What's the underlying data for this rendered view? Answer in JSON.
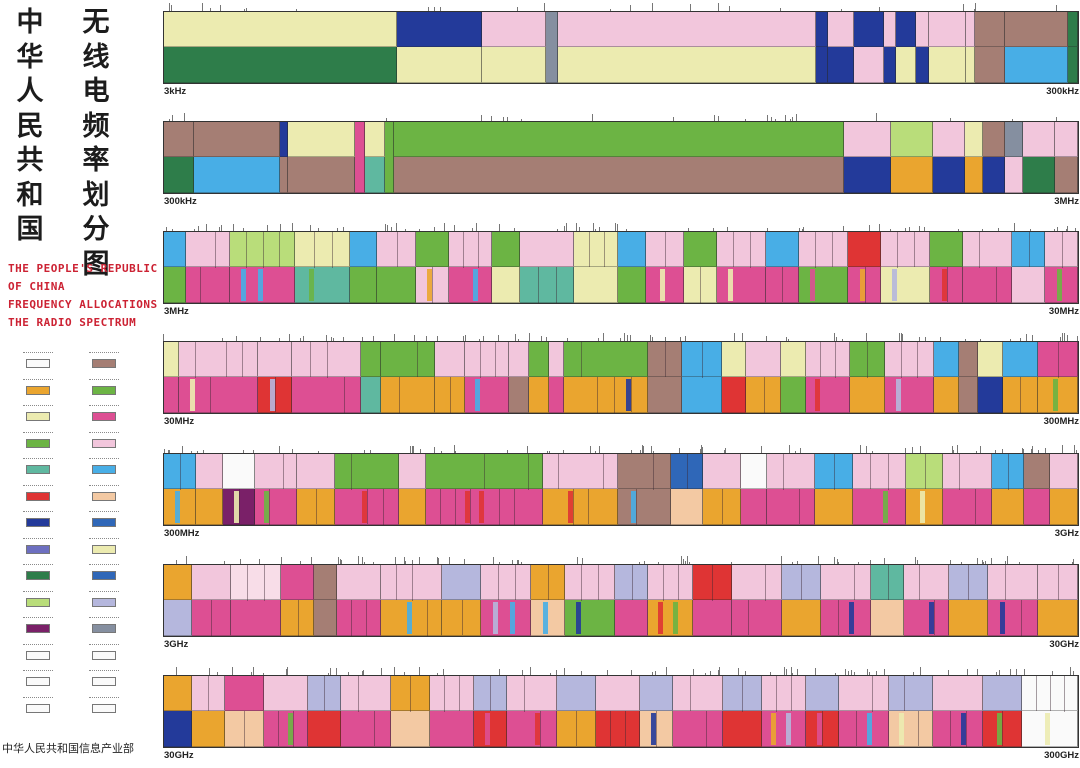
{
  "title": {
    "chinese_left": "中华人民共和国",
    "chinese_right": "无线电频率划分图",
    "english": [
      "THE PEOPLE'S REPUBLIC",
      "OF CHINA",
      "FREQUENCY ALLOCATIONS",
      "THE RADIO SPECTRUM"
    ]
  },
  "footer": "中华人民共和国信息产业部",
  "colors": {
    "pink": "#f2c6dc",
    "yellow": "#ecebb0",
    "green": "#2e7d4a",
    "lgreen": "#6cb444",
    "navy": "#233a9a",
    "brown": "#a57e74",
    "sky": "#48aee6",
    "magenta": "#dd4f93",
    "orange": "#eaa52f",
    "gray": "#858fa0",
    "red": "#df3434",
    "purple": "#7a2068",
    "teal": "#5fb8a0",
    "lpink": "#f8dde8",
    "peach": "#f3c9a3",
    "lilac": "#b5b7dd",
    "dblue": "#2f67b8",
    "white": "#fafafa",
    "lime": "#b9dd7a",
    "violet": "#6d6fc0"
  },
  "legend": {
    "left": [
      {
        "color": "white",
        "icon": "service-swatch"
      },
      {
        "color": "orange",
        "icon": "service-swatch"
      },
      {
        "color": "yellow",
        "icon": "service-swatch"
      },
      {
        "color": "lgreen",
        "icon": "service-swatch"
      },
      {
        "color": "teal",
        "icon": "service-swatch"
      },
      {
        "color": "red",
        "icon": "service-swatch"
      },
      {
        "color": "navy",
        "icon": "service-swatch"
      },
      {
        "color": "violet",
        "icon": "service-swatch"
      },
      {
        "color": "green",
        "icon": "service-swatch"
      },
      {
        "color": "lime",
        "icon": "service-swatch"
      },
      {
        "color": "purple",
        "icon": "service-swatch"
      },
      {
        "color": "white",
        "icon": "service-swatch"
      },
      {
        "color": "white",
        "icon": "service-swatch"
      },
      {
        "color": "white",
        "icon": "service-swatch"
      }
    ],
    "right": [
      {
        "color": "brown",
        "icon": "service-swatch"
      },
      {
        "color": "lgreen",
        "icon": "service-swatch"
      },
      {
        "color": "magenta",
        "icon": "service-swatch"
      },
      {
        "color": "pink",
        "icon": "service-swatch"
      },
      {
        "color": "sky",
        "icon": "service-swatch"
      },
      {
        "color": "peach",
        "icon": "service-swatch"
      },
      {
        "color": "dblue",
        "icon": "service-swatch"
      },
      {
        "color": "yellow",
        "icon": "service-swatch"
      },
      {
        "color": "dblue",
        "icon": "service-swatch"
      },
      {
        "color": "lilac",
        "icon": "service-swatch"
      },
      {
        "color": "gray",
        "icon": "service-swatch"
      },
      {
        "color": "white",
        "icon": "service-swatch"
      },
      {
        "color": "white",
        "icon": "service-swatch"
      },
      {
        "color": "white",
        "icon": "service-swatch"
      }
    ]
  },
  "chart_data": {
    "type": "frequency-allocation-bands",
    "bands": [
      {
        "start_label": "3kHz",
        "end_label": "300kHz",
        "segments": [
          {
            "w": 230,
            "top": "yellow",
            "bottom": "green"
          },
          {
            "w": 85,
            "top": "navy",
            "bottom": "yellow"
          },
          {
            "w": 63,
            "top": "pink",
            "bottom": "yellow"
          },
          {
            "w": 12,
            "top": "gray"
          },
          {
            "w": 255,
            "top": "pink",
            "bottom": "yellow"
          },
          {
            "w": 12,
            "top": "navy",
            "bottom": "navy"
          },
          {
            "w": 25,
            "top": "pink",
            "bottom": "navy"
          },
          {
            "w": 30,
            "top": "navy",
            "bottom": "pink"
          },
          {
            "w": 12,
            "top": "pink",
            "bottom": "navy"
          },
          {
            "w": 20,
            "top": "navy",
            "bottom": "yellow"
          },
          {
            "w": 13,
            "top": "pink",
            "bottom": "navy"
          },
          {
            "w": 36,
            "top": "pink",
            "bottom": "yellow"
          },
          {
            "w": 9,
            "top": "pink",
            "bottom": "yellow"
          },
          {
            "w": 30,
            "top": "brown",
            "bottom": "brown"
          },
          {
            "w": 62,
            "top": "brown",
            "bottom": "sky"
          },
          {
            "w": 10,
            "top": "green",
            "bottom": "green"
          }
        ]
      },
      {
        "start_label": "300kHz",
        "end_label": "3MHz",
        "segments": [
          {
            "w": 30,
            "top": "brown",
            "bottom": "green"
          },
          {
            "w": 86,
            "top": "brown",
            "bottom": "sky"
          },
          {
            "w": 8,
            "top": "navy",
            "bottom": "brown"
          },
          {
            "w": 67,
            "top": "yellow",
            "bottom": "brown"
          },
          {
            "w": 10,
            "top": "magenta"
          },
          {
            "w": 20,
            "top": "yellow",
            "bottom": "teal"
          },
          {
            "w": 10,
            "top": "lgreen"
          },
          {
            "w": 450,
            "top": "lgreen",
            "bottom": "brown"
          },
          {
            "w": 48,
            "top": "pink",
            "bottom": "navy"
          },
          {
            "w": 42,
            "top": "lime",
            "bottom": "orange"
          },
          {
            "w": 32,
            "top": "pink",
            "bottom": "navy"
          },
          {
            "w": 18,
            "top": "yellow",
            "bottom": "orange"
          },
          {
            "w": 22,
            "top": "brown",
            "bottom": "navy"
          },
          {
            "w": 18,
            "top": "gray",
            "bottom": "pink"
          },
          {
            "w": 32,
            "top": "pink",
            "bottom": "green"
          },
          {
            "w": 23,
            "top": "pink",
            "bottom": "brown"
          }
        ]
      },
      {
        "start_label": "3MHz",
        "end_label": "30MHz",
        "segments": [
          {
            "w": 20,
            "top": "sky",
            "bottom": "lgreen"
          },
          {
            "w": 40,
            "top": "pink",
            "bottom": "magenta"
          },
          {
            "w": 60,
            "top": "lime",
            "bottom": "magenta"
          },
          {
            "w": 50,
            "top": "yellow",
            "bottom": "teal"
          },
          {
            "w": 25,
            "top": "sky",
            "bottom": "lgreen"
          },
          {
            "w": 35,
            "top": "pink",
            "bottom": "lgreen"
          },
          {
            "w": 30,
            "top": "lgreen",
            "bottom": "pink"
          },
          {
            "w": 40,
            "top": "pink",
            "bottom": "magenta"
          },
          {
            "w": 25,
            "top": "lgreen",
            "bottom": "yellow"
          },
          {
            "w": 50,
            "top": "pink",
            "bottom": "teal"
          },
          {
            "w": 40,
            "top": "yellow",
            "bottom": "yellow"
          },
          {
            "w": 25,
            "top": "sky",
            "bottom": "lgreen"
          },
          {
            "w": 35,
            "top": "pink",
            "bottom": "magenta"
          },
          {
            "w": 30,
            "top": "lgreen",
            "bottom": "yellow"
          },
          {
            "w": 45,
            "top": "pink",
            "bottom": "magenta"
          },
          {
            "w": 30,
            "top": "sky",
            "bottom": "magenta"
          },
          {
            "w": 45,
            "top": "pink",
            "bottom": "lgreen"
          },
          {
            "w": 30,
            "top": "red",
            "bottom": "magenta"
          },
          {
            "w": 45,
            "top": "pink",
            "bottom": "yellow"
          },
          {
            "w": 30,
            "top": "lgreen",
            "bottom": "magenta"
          },
          {
            "w": 45,
            "top": "pink",
            "bottom": "magenta"
          },
          {
            "w": 30,
            "top": "sky",
            "bottom": "pink"
          },
          {
            "w": 30,
            "top": "pink",
            "bottom": "magenta"
          }
        ]
      },
      {
        "start_label": "30MHz",
        "end_label": "300MHz",
        "segments": [
          {
            "w": 15,
            "top": "yellow",
            "bottom": "magenta"
          },
          {
            "w": 80,
            "top": "pink",
            "bottom": "magenta"
          },
          {
            "w": 35,
            "top": "pink",
            "bottom": "red"
          },
          {
            "w": 70,
            "top": "pink",
            "bottom": "magenta"
          },
          {
            "w": 20,
            "top": "lgreen",
            "bottom": "teal"
          },
          {
            "w": 55,
            "top": "lgreen",
            "bottom": "orange"
          },
          {
            "w": 30,
            "top": "pink",
            "bottom": "orange"
          },
          {
            "w": 45,
            "top": "pink",
            "bottom": "magenta"
          },
          {
            "w": 20,
            "top": "pink",
            "bottom": "brown"
          },
          {
            "w": 20,
            "top": "lgreen",
            "bottom": "orange"
          },
          {
            "w": 15,
            "top": "pink",
            "bottom": "magenta"
          },
          {
            "w": 85,
            "top": "lgreen",
            "bottom": "orange"
          },
          {
            "w": 35,
            "top": "brown",
            "bottom": "brown"
          },
          {
            "w": 40,
            "top": "sky",
            "bottom": "sky"
          },
          {
            "w": 25,
            "top": "yellow",
            "bottom": "red"
          },
          {
            "w": 35,
            "top": "pink",
            "bottom": "orange"
          },
          {
            "w": 25,
            "top": "yellow",
            "bottom": "lgreen"
          },
          {
            "w": 45,
            "top": "pink",
            "bottom": "magenta"
          },
          {
            "w": 35,
            "top": "lgreen",
            "bottom": "orange"
          },
          {
            "w": 50,
            "top": "pink",
            "bottom": "magenta"
          },
          {
            "w": 25,
            "top": "sky",
            "bottom": "orange"
          },
          {
            "w": 20,
            "top": "brown",
            "bottom": "brown"
          },
          {
            "w": 25,
            "top": "yellow",
            "bottom": "navy"
          },
          {
            "w": 35,
            "top": "sky",
            "bottom": "orange"
          },
          {
            "w": 41,
            "top": "magenta",
            "bottom": "orange"
          }
        ]
      },
      {
        "start_label": "300MHz",
        "end_label": "3GHz",
        "segments": [
          {
            "w": 30,
            "top": "sky",
            "bottom": "orange"
          },
          {
            "w": 25,
            "top": "pink",
            "bottom": "orange"
          },
          {
            "w": 30,
            "top": "white",
            "bottom": "purple"
          },
          {
            "w": 40,
            "top": "pink",
            "bottom": "magenta"
          },
          {
            "w": 35,
            "top": "pink",
            "bottom": "orange"
          },
          {
            "w": 60,
            "top": "lgreen",
            "bottom": "magenta"
          },
          {
            "w": 25,
            "top": "pink",
            "bottom": "orange"
          },
          {
            "w": 110,
            "top": "lgreen",
            "bottom": "magenta"
          },
          {
            "w": 70,
            "top": "pink",
            "bottom": "orange"
          },
          {
            "w": 50,
            "top": "brown",
            "bottom": "brown"
          },
          {
            "w": 30,
            "top": "dblue",
            "bottom": "peach"
          },
          {
            "w": 35,
            "top": "pink",
            "bottom": "orange"
          },
          {
            "w": 25,
            "top": "white",
            "bottom": "magenta"
          },
          {
            "w": 45,
            "top": "pink",
            "bottom": "magenta"
          },
          {
            "w": 35,
            "top": "sky",
            "bottom": "orange"
          },
          {
            "w": 50,
            "top": "pink",
            "bottom": "magenta"
          },
          {
            "w": 35,
            "top": "lime",
            "bottom": "orange"
          },
          {
            "w": 45,
            "top": "pink",
            "bottom": "magenta"
          },
          {
            "w": 30,
            "top": "sky",
            "bottom": "orange"
          },
          {
            "w": 25,
            "top": "brown",
            "bottom": "magenta"
          },
          {
            "w": 26,
            "top": "pink",
            "bottom": "orange"
          }
        ]
      },
      {
        "start_label": "3GHz",
        "end_label": "30GHz",
        "segments": [
          {
            "w": 25,
            "top": "orange",
            "bottom": "lilac"
          },
          {
            "w": 35,
            "top": "pink",
            "bottom": "magenta"
          },
          {
            "w": 45,
            "top": "lpink",
            "bottom": "magenta"
          },
          {
            "w": 30,
            "top": "magenta",
            "bottom": "orange"
          },
          {
            "w": 20,
            "top": "brown",
            "bottom": "brown"
          },
          {
            "w": 40,
            "top": "pink",
            "bottom": "magenta"
          },
          {
            "w": 55,
            "top": "pink",
            "bottom": "orange"
          },
          {
            "w": 35,
            "top": "lilac",
            "bottom": "orange"
          },
          {
            "w": 45,
            "top": "pink",
            "bottom": "magenta"
          },
          {
            "w": 30,
            "top": "orange",
            "bottom": "peach"
          },
          {
            "w": 45,
            "top": "pink",
            "bottom": "lgreen"
          },
          {
            "w": 30,
            "top": "lilac",
            "bottom": "magenta"
          },
          {
            "w": 40,
            "top": "pink",
            "bottom": "orange"
          },
          {
            "w": 35,
            "top": "red",
            "bottom": "magenta"
          },
          {
            "w": 45,
            "top": "pink",
            "bottom": "magenta"
          },
          {
            "w": 35,
            "top": "lilac",
            "bottom": "orange"
          },
          {
            "w": 45,
            "top": "pink",
            "bottom": "magenta"
          },
          {
            "w": 30,
            "top": "teal",
            "bottom": "peach"
          },
          {
            "w": 40,
            "top": "pink",
            "bottom": "magenta"
          },
          {
            "w": 35,
            "top": "lilac",
            "bottom": "orange"
          },
          {
            "w": 45,
            "top": "pink",
            "bottom": "magenta"
          },
          {
            "w": 36,
            "top": "pink",
            "bottom": "orange"
          }
        ]
      },
      {
        "start_label": "30GHz",
        "end_label": "300GHz",
        "segments": [
          {
            "w": 25,
            "top": "orange",
            "bottom": "navy"
          },
          {
            "w": 30,
            "top": "pink",
            "bottom": "orange"
          },
          {
            "w": 35,
            "top": "magenta",
            "bottom": "peach"
          },
          {
            "w": 40,
            "top": "pink",
            "bottom": "magenta"
          },
          {
            "w": 30,
            "top": "lilac",
            "bottom": "red"
          },
          {
            "w": 45,
            "top": "pink",
            "bottom": "magenta"
          },
          {
            "w": 35,
            "top": "orange",
            "bottom": "peach"
          },
          {
            "w": 40,
            "top": "pink",
            "bottom": "magenta"
          },
          {
            "w": 30,
            "top": "lilac",
            "bottom": "red"
          },
          {
            "w": 45,
            "top": "pink",
            "bottom": "magenta"
          },
          {
            "w": 35,
            "top": "lilac",
            "bottom": "orange"
          },
          {
            "w": 40,
            "top": "pink",
            "bottom": "red"
          },
          {
            "w": 30,
            "top": "lilac",
            "bottom": "peach"
          },
          {
            "w": 45,
            "top": "pink",
            "bottom": "magenta"
          },
          {
            "w": 35,
            "top": "lilac",
            "bottom": "red"
          },
          {
            "w": 40,
            "top": "pink",
            "bottom": "magenta"
          },
          {
            "w": 30,
            "top": "lilac",
            "bottom": "red"
          },
          {
            "w": 45,
            "top": "pink",
            "bottom": "magenta"
          },
          {
            "w": 40,
            "top": "lilac",
            "bottom": "peach"
          },
          {
            "w": 45,
            "top": "pink",
            "bottom": "magenta"
          },
          {
            "w": 35,
            "top": "lilac",
            "bottom": "red"
          },
          {
            "w": 51,
            "top": "white",
            "bottom": "white"
          }
        ]
      }
    ]
  }
}
